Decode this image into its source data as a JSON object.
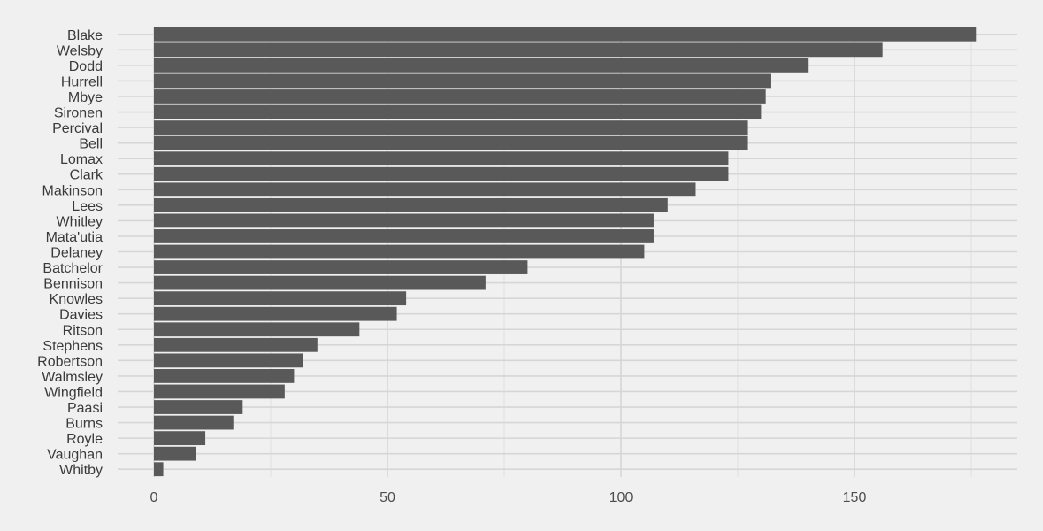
{
  "chart_data": {
    "type": "bar",
    "orientation": "horizontal",
    "title": "",
    "xlabel": "",
    "ylabel": "",
    "categories": [
      "Blake",
      "Welsby",
      "Dodd",
      "Hurrell",
      "Mbye",
      "Sironen",
      "Percival",
      "Bell",
      "Lomax",
      "Clark",
      "Makinson",
      "Lees",
      "Whitley",
      "Mata'utia",
      "Delaney",
      "Batchelor",
      "Bennison",
      "Knowles",
      "Davies",
      "Ritson",
      "Stephens",
      "Robertson",
      "Walmsley",
      "Wingfield",
      "Paasi",
      "Burns",
      "Royle",
      "Vaughan",
      "Whitby"
    ],
    "values": [
      176,
      156,
      140,
      132,
      131,
      130,
      127,
      127,
      123,
      123,
      116,
      110,
      107,
      107,
      105,
      80,
      71,
      54,
      52,
      44,
      35,
      32,
      30,
      28,
      19,
      17,
      11,
      9,
      2
    ],
    "xlim": [
      0,
      185
    ],
    "x_ticks": [
      0,
      50,
      100,
      150
    ],
    "x_tick_labels": [
      "0",
      "50",
      "100",
      "150"
    ],
    "grid": true,
    "legend": "none",
    "colors": {
      "bar": "#595959",
      "background": "#f0f0f0",
      "grid": "#d6d6d6"
    }
  }
}
